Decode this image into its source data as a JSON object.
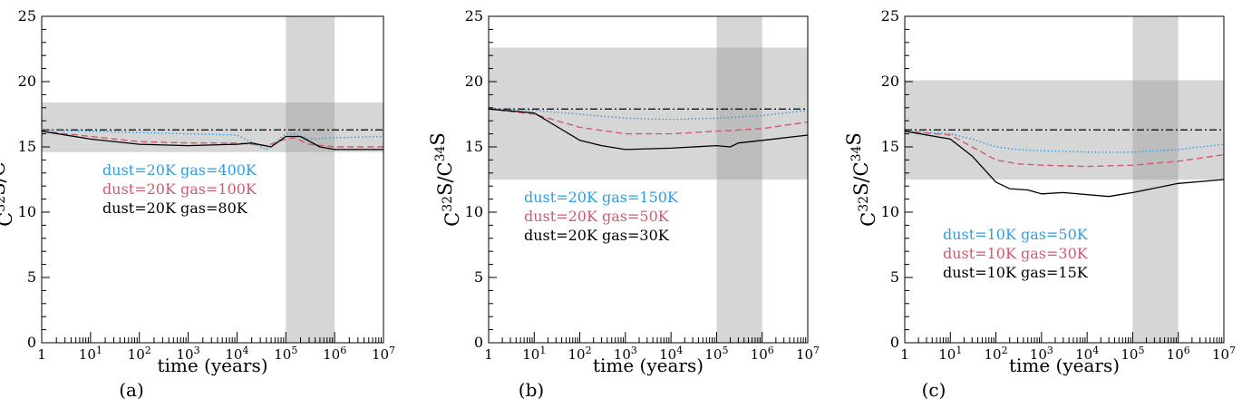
{
  "colors": {
    "band": "#d6d6d6",
    "band_overlap": "#bdbdbd",
    "blue": "#2f9ee0",
    "red": "#d05a70",
    "black": "#000000"
  },
  "chart_data": [
    {
      "type": "line",
      "caption": "(a)",
      "xlabel": "time (years)",
      "ylabel": "C32S/C34S",
      "xscale": "log",
      "xlim": [
        1,
        10000000
      ],
      "ylim": [
        0,
        25
      ],
      "x_ticks": [
        {
          "base": "1",
          "exp": ""
        },
        {
          "base": "10",
          "exp": "1"
        },
        {
          "base": "10",
          "exp": "2"
        },
        {
          "base": "10",
          "exp": "3"
        },
        {
          "base": "10",
          "exp": "4"
        },
        {
          "base": "10",
          "exp": "5"
        },
        {
          "base": "10",
          "exp": "6"
        },
        {
          "base": "10",
          "exp": "7"
        }
      ],
      "y_ticks": [
        "0",
        "5",
        "10",
        "15",
        "20",
        "25"
      ],
      "y_band": [
        14.6,
        18.4
      ],
      "x_band": [
        100000,
        1000000
      ],
      "reference_line": 16.3,
      "legend": [
        {
          "text": "dust=20K gas=400K",
          "color": "blue"
        },
        {
          "text": "dust=20K gas=100K",
          "color": "red"
        },
        {
          "text": "dust=20K gas=80K",
          "color": "black"
        }
      ],
      "series": [
        {
          "color": "blue",
          "style": "dotted",
          "x": [
            1,
            10,
            100,
            1000,
            10000,
            40000,
            100000,
            150000,
            300000,
            1000000,
            10000000
          ],
          "y": [
            16.3,
            16.2,
            16.1,
            16.0,
            15.9,
            14.8,
            16.0,
            16.0,
            15.6,
            15.7,
            15.8
          ]
        },
        {
          "color": "red",
          "style": "dashed",
          "x": [
            1,
            10,
            100,
            1000,
            10000,
            40000,
            100000,
            150000,
            300000,
            1000000,
            10000000
          ],
          "y": [
            16.2,
            15.8,
            15.4,
            15.3,
            15.3,
            15.1,
            15.6,
            15.7,
            15.2,
            15.0,
            15.0
          ]
        },
        {
          "color": "black",
          "style": "solid",
          "x": [
            1,
            10,
            100,
            1000,
            10000,
            20000,
            50000,
            100000,
            200000,
            500000,
            1000000,
            10000000
          ],
          "y": [
            16.2,
            15.6,
            15.2,
            15.1,
            15.2,
            15.3,
            15.0,
            15.8,
            15.8,
            15.0,
            14.8,
            14.8
          ]
        }
      ]
    },
    {
      "type": "line",
      "caption": "(b)",
      "xlabel": "time (years)",
      "ylabel": "C32S/C34S",
      "xscale": "log",
      "xlim": [
        1,
        10000000
      ],
      "ylim": [
        0,
        25
      ],
      "x_ticks": [
        {
          "base": "1",
          "exp": ""
        },
        {
          "base": "10",
          "exp": "1"
        },
        {
          "base": "10",
          "exp": "2"
        },
        {
          "base": "10",
          "exp": "3"
        },
        {
          "base": "10",
          "exp": "4"
        },
        {
          "base": "10",
          "exp": "5"
        },
        {
          "base": "10",
          "exp": "6"
        },
        {
          "base": "10",
          "exp": "7"
        }
      ],
      "y_ticks": [
        "0",
        "5",
        "10",
        "15",
        "20",
        "25"
      ],
      "y_band": [
        12.5,
        22.6
      ],
      "x_band": [
        100000,
        1000000
      ],
      "reference_line": 17.9,
      "legend": [
        {
          "text": "dust=20K gas=150K",
          "color": "blue"
        },
        {
          "text": "dust=20K gas=50K",
          "color": "red"
        },
        {
          "text": "dust=20K gas=30K",
          "color": "black"
        }
      ],
      "series": [
        {
          "color": "blue",
          "style": "dotted",
          "x": [
            1,
            10,
            100,
            1000,
            10000,
            100000,
            1000000,
            10000000
          ],
          "y": [
            17.9,
            17.8,
            17.5,
            17.2,
            17.1,
            17.2,
            17.4,
            17.8
          ]
        },
        {
          "color": "red",
          "style": "dashed",
          "x": [
            1,
            10,
            100,
            1000,
            10000,
            100000,
            1000000,
            10000000
          ],
          "y": [
            17.9,
            17.5,
            16.5,
            16.0,
            16.0,
            16.2,
            16.4,
            16.9
          ]
        },
        {
          "color": "black",
          "style": "solid",
          "x": [
            1,
            10,
            30,
            100,
            300,
            1000,
            10000,
            100000,
            200000,
            300000,
            1000000,
            10000000
          ],
          "y": [
            17.9,
            17.6,
            16.6,
            15.5,
            15.1,
            14.8,
            14.9,
            15.1,
            15.0,
            15.3,
            15.5,
            15.9
          ]
        }
      ]
    },
    {
      "type": "line",
      "caption": "(c)",
      "xlabel": "time (years)",
      "ylabel": "C32S/C34S",
      "xscale": "log",
      "xlim": [
        1,
        10000000
      ],
      "ylim": [
        0,
        25
      ],
      "x_ticks": [
        {
          "base": "1",
          "exp": ""
        },
        {
          "base": "10",
          "exp": "1"
        },
        {
          "base": "10",
          "exp": "2"
        },
        {
          "base": "10",
          "exp": "3"
        },
        {
          "base": "10",
          "exp": "4"
        },
        {
          "base": "10",
          "exp": "5"
        },
        {
          "base": "10",
          "exp": "6"
        },
        {
          "base": "10",
          "exp": "7"
        }
      ],
      "y_ticks": [
        "0",
        "5",
        "10",
        "15",
        "20",
        "25"
      ],
      "y_band": [
        12.5,
        20.1
      ],
      "x_band": [
        100000,
        1000000
      ],
      "reference_line": 16.3,
      "legend": [
        {
          "text": "dust=10K gas=50K",
          "color": "blue"
        },
        {
          "text": "dust=10K gas=30K",
          "color": "red"
        },
        {
          "text": "dust=10K gas=15K",
          "color": "black"
        }
      ],
      "series": [
        {
          "color": "blue",
          "style": "dotted",
          "x": [
            1,
            10,
            30,
            100,
            300,
            1000,
            10000,
            100000,
            1000000,
            10000000
          ],
          "y": [
            16.2,
            16.0,
            15.6,
            15.0,
            14.8,
            14.7,
            14.6,
            14.6,
            14.8,
            15.2
          ]
        },
        {
          "color": "red",
          "style": "dashed",
          "x": [
            1,
            10,
            30,
            100,
            300,
            1000,
            10000,
            100000,
            1000000,
            10000000
          ],
          "y": [
            16.2,
            15.9,
            15.0,
            14.0,
            13.7,
            13.6,
            13.5,
            13.6,
            13.9,
            14.4
          ]
        },
        {
          "color": "black",
          "style": "solid",
          "x": [
            1,
            10,
            30,
            100,
            200,
            500,
            1000,
            3000,
            30000,
            100000,
            1000000,
            10000000
          ],
          "y": [
            16.2,
            15.6,
            14.3,
            12.3,
            11.8,
            11.7,
            11.4,
            11.5,
            11.2,
            11.5,
            12.2,
            12.5
          ]
        }
      ]
    }
  ]
}
